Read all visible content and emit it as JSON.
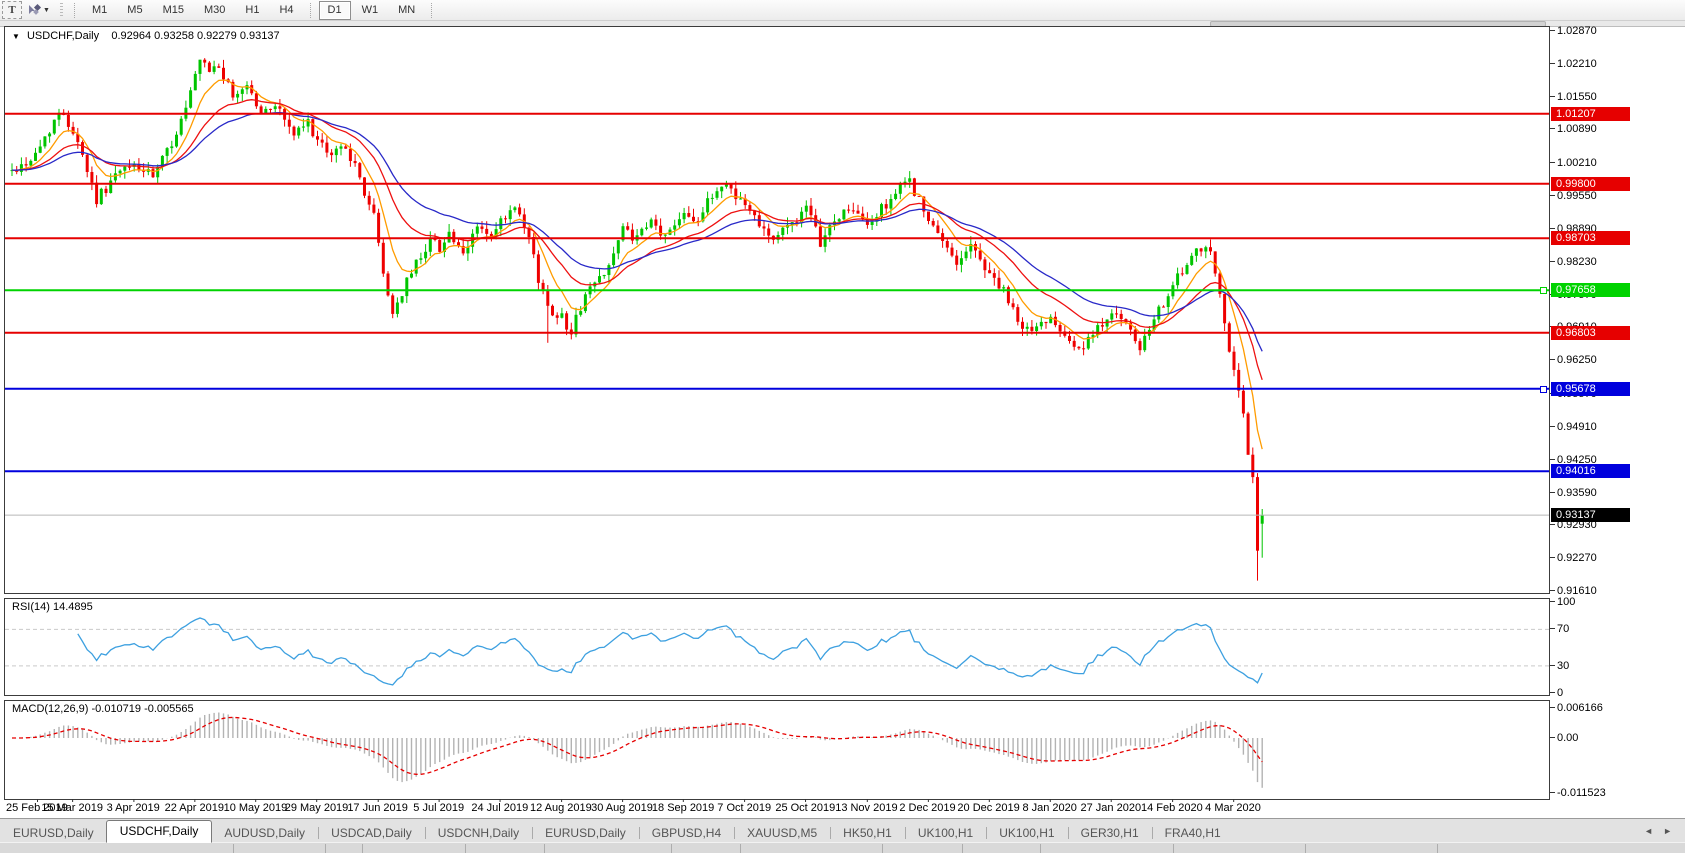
{
  "toolbar": {
    "text_tool_label": "T",
    "timeframes": [
      "M1",
      "M5",
      "M15",
      "M30",
      "H1",
      "H4",
      "D1",
      "W1",
      "MN"
    ],
    "active_timeframe": "D1"
  },
  "chart_header": {
    "dropdown_icon": "triangle-down",
    "symbol": "USDCHF,Daily",
    "ohlc": "0.92964 0.93258 0.92279 0.93137"
  },
  "rsi_panel": {
    "label": "RSI(14)",
    "value": "14.4895",
    "axis_ticks": [
      "100",
      "70",
      "30",
      "0"
    ],
    "levels": [
      70,
      30
    ],
    "line_color": "#3da0e0"
  },
  "macd_panel": {
    "label": "MACD(12,26,9)",
    "values": "-0.010719 -0.005565",
    "axis_ticks": [
      "0.006166",
      "0.00",
      "-0.011523"
    ],
    "histogram_color": "#b3b3b3",
    "signal_color": "#e60000"
  },
  "current_price": {
    "value": "0.93137",
    "price": 0.93137,
    "line_color": "#b8b8b8",
    "box_color": "#000000"
  },
  "tabs": {
    "items": [
      "EURUSD,Daily",
      "USDCHF,Daily",
      "AUDUSD,Daily",
      "USDCAD,Daily",
      "USDCNH,Daily",
      "EURUSD,Daily",
      "GBPUSD,H4",
      "XAUUSD,M5",
      "HK50,H1",
      "UK100,H1",
      "UK100,H1",
      "GER30,H1",
      "FRA40,H1"
    ],
    "active_index": 1,
    "nav_left": "◄",
    "nav_right": "►"
  },
  "chart_data": {
    "type": "candlestick",
    "title": "USDCHF,Daily",
    "symbol": "USDCHF",
    "timeframe": "Daily",
    "bars": 267,
    "visible_range": {
      "start": "25 Feb 2019",
      "end": "4 Mar 2020 +"
    },
    "current_quote": {
      "open": 0.92964,
      "high": 0.93258,
      "low": 0.92279,
      "close": 0.93137
    },
    "up_color": "#00c400",
    "down_color": "#ee0000",
    "y_axis_ticks": [
      "1.02870",
      "1.02210",
      "1.01550",
      "1.00890",
      "1.00210",
      "0.99550",
      "0.98890",
      "0.98230",
      "0.97570",
      "0.96910",
      "0.96250",
      "0.95570",
      "0.94910",
      "0.94250",
      "0.93590",
      "0.92930",
      "0.92270",
      "0.91610"
    ],
    "x_axis_dates": [
      "25 Feb 2019",
      "15 Mar 2019",
      "3 Apr 2019",
      "22 Apr 2019",
      "10 May 2019",
      "29 May 2019",
      "17 Jun 2019",
      "5 Jul 2019",
      "24 Jul 2019",
      "12 Aug 2019",
      "30 Aug 2019",
      "18 Sep 2019",
      "7 Oct 2019",
      "25 Oct 2019",
      "13 Nov 2019",
      "2 Dec 2019",
      "20 Dec 2019",
      "8 Jan 2020",
      "27 Jan 2020",
      "14 Feb 2020",
      "4 Mar 2020"
    ],
    "horizontal_lines": [
      {
        "value": "1.01207",
        "price": 1.01207,
        "color": "#e60000",
        "handle": false
      },
      {
        "value": "0.99800",
        "price": 0.998,
        "color": "#e60000",
        "handle": false
      },
      {
        "value": "0.98703",
        "price": 0.98703,
        "color": "#e60000",
        "handle": false
      },
      {
        "value": "0.97658",
        "price": 0.97658,
        "color": "#00d300",
        "handle": true
      },
      {
        "value": "0.96803",
        "price": 0.96803,
        "color": "#e60000",
        "handle": false
      },
      {
        "value": "0.95678",
        "price": 0.95678,
        "color": "#0000dd",
        "handle": true
      },
      {
        "value": "0.94016",
        "price": 0.94016,
        "color": "#0000dd",
        "handle": false
      }
    ],
    "moving_averages": [
      {
        "name": "fast",
        "period": 8,
        "color": "#ff9c00"
      },
      {
        "name": "medium",
        "period": 20,
        "color": "#ee1111"
      },
      {
        "name": "slow",
        "period": 34,
        "color": "#2929c8"
      }
    ],
    "close_waypoints": [
      [
        0,
        1.0005
      ],
      [
        3,
        1.0022
      ],
      [
        5,
        1.0038
      ],
      [
        9,
        1.0108
      ],
      [
        11,
        1.0122
      ],
      [
        14,
        1.0068
      ],
      [
        18,
        0.9948
      ],
      [
        22,
        0.9996
      ],
      [
        26,
        1.0018
      ],
      [
        30,
        0.9992
      ],
      [
        34,
        1.0062
      ],
      [
        37,
        1.013
      ],
      [
        40,
        1.0224
      ],
      [
        42,
        1.0205
      ],
      [
        44,
        1.0218
      ],
      [
        47,
        1.0152
      ],
      [
        50,
        1.0182
      ],
      [
        53,
        1.0118
      ],
      [
        56,
        1.0142
      ],
      [
        60,
        1.0078
      ],
      [
        63,
        1.0102
      ],
      [
        67,
        1.0035
      ],
      [
        71,
        1.0058
      ],
      [
        74,
        0.9988
      ],
      [
        77,
        0.9915
      ],
      [
        79,
        0.98
      ],
      [
        81,
        0.9718
      ],
      [
        83,
        0.9762
      ],
      [
        86,
        0.982
      ],
      [
        89,
        0.9868
      ],
      [
        91,
        0.9852
      ],
      [
        93,
        0.9882
      ],
      [
        96,
        0.983
      ],
      [
        99,
        0.9898
      ],
      [
        102,
        0.9868
      ],
      [
        104,
        0.9902
      ],
      [
        107,
        0.9928
      ],
      [
        110,
        0.9868
      ],
      [
        112,
        0.979
      ],
      [
        114,
        0.9732
      ],
      [
        117,
        0.9712
      ],
      [
        119,
        0.9682
      ],
      [
        122,
        0.9758
      ],
      [
        125,
        0.979
      ],
      [
        128,
        0.9838
      ],
      [
        130,
        0.9888
      ],
      [
        133,
        0.9868
      ],
      [
        136,
        0.9902
      ],
      [
        139,
        0.9872
      ],
      [
        143,
        0.9928
      ],
      [
        146,
        0.9905
      ],
      [
        149,
        0.9958
      ],
      [
        152,
        0.9982
      ],
      [
        156,
        0.9935
      ],
      [
        159,
        0.9905
      ],
      [
        162,
        0.9868
      ],
      [
        165,
        0.9895
      ],
      [
        169,
        0.9928
      ],
      [
        172,
        0.9862
      ],
      [
        175,
        0.9905
      ],
      [
        178,
        0.9932
      ],
      [
        182,
        0.9895
      ],
      [
        185,
        0.9928
      ],
      [
        188,
        0.9962
      ],
      [
        191,
        0.9988
      ],
      [
        195,
        0.9902
      ],
      [
        198,
        0.9862
      ],
      [
        201,
        0.9825
      ],
      [
        204,
        0.9855
      ],
      [
        208,
        0.98
      ],
      [
        211,
        0.9762
      ],
      [
        214,
        0.9702
      ],
      [
        217,
        0.9682
      ],
      [
        221,
        0.9715
      ],
      [
        224,
        0.9682
      ],
      [
        227,
        0.9642
      ],
      [
        230,
        0.9672
      ],
      [
        234,
        0.9728
      ],
      [
        237,
        0.9692
      ],
      [
        240,
        0.9648
      ],
      [
        243,
        0.9702
      ],
      [
        246,
        0.9762
      ],
      [
        249,
        0.9802
      ],
      [
        252,
        0.984
      ],
      [
        255,
        0.9846
      ],
      [
        256,
        0.98
      ],
      [
        257,
        0.9762
      ],
      [
        258,
        0.97
      ],
      [
        259,
        0.964
      ],
      [
        260,
        0.9608
      ],
      [
        261,
        0.956
      ],
      [
        262,
        0.952
      ],
      [
        263,
        0.9435
      ],
      [
        264,
        0.939
      ],
      [
        265,
        0.9242
      ],
      [
        266,
        0.93137
      ]
    ],
    "forced_bars": {
      "40": {
        "h": 1.0229
      },
      "114": {
        "l": 0.966
      },
      "263": {
        "c": 0.9435
      },
      "264": {
        "c": 0.939
      },
      "265": {
        "o": 0.939,
        "h": 0.9398,
        "l": 0.9182,
        "c": 0.9242
      },
      "266": {
        "o": 0.92964,
        "h": 0.93258,
        "l": 0.92279,
        "c": 0.93137
      }
    }
  }
}
